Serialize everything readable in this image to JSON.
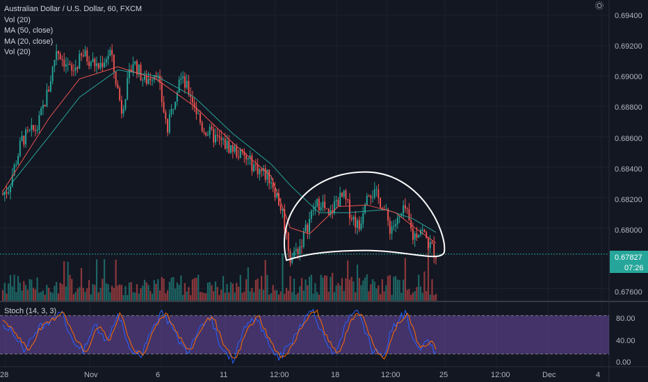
{
  "header": {
    "title": "Australian Dollar / U.S. Dollar, 60, FXCM",
    "indicators": [
      "Vol (20)",
      "MA (50, close)",
      "MA (20, close)",
      "Vol (20)"
    ]
  },
  "stoch": {
    "label": "Stoch (14, 3, 3)",
    "y_ticks": [
      "80.00",
      "40.00",
      "0.00"
    ],
    "band_upper": 80,
    "band_lower": 20
  },
  "price_axis": {
    "ticks": [
      "0.69400",
      "0.69200",
      "0.69000",
      "0.68800",
      "0.68600",
      "0.68400",
      "0.68200",
      "0.68000",
      "0.67600"
    ],
    "current_price": "0.67827",
    "countdown": "07:26"
  },
  "time_axis": {
    "ticks": [
      "28",
      "Nov",
      "6",
      "11",
      "12:00",
      "18",
      "12:00",
      "25",
      "12:00",
      "Dec",
      "4"
    ]
  },
  "colors": {
    "background": "#131722",
    "up": "#26a69a",
    "down": "#ef5350",
    "ma50": "#26a69a",
    "ma20": "#ef5350",
    "stoch_band": "#7e57c2",
    "stoch_k": "#2962ff",
    "stoch_d": "#ff6d00",
    "annotation": "#ffffff",
    "price_tag": "#26a69a"
  },
  "chart_data": [
    {
      "type": "candlestick",
      "title": "Australian Dollar / U.S. Dollar, 60, FXCM",
      "ylim": [
        0.6752,
        0.695
      ],
      "y_ticks": [
        0.694,
        0.692,
        0.69,
        0.688,
        0.686,
        0.684,
        0.682,
        0.68,
        0.676
      ],
      "last_price": 0.67827,
      "close_path": [
        [
          0,
          0.6822
        ],
        [
          3,
          0.6826
        ],
        [
          10,
          0.6858
        ],
        [
          18,
          0.6866
        ],
        [
          24,
          0.6892
        ],
        [
          28,
          0.6918
        ],
        [
          36,
          0.6902
        ],
        [
          42,
          0.6914
        ],
        [
          50,
          0.6906
        ],
        [
          56,
          0.6916
        ],
        [
          62,
          0.6878
        ],
        [
          68,
          0.691
        ],
        [
          74,
          0.6896
        ],
        [
          80,
          0.6904
        ],
        [
          86,
          0.6864
        ],
        [
          92,
          0.69
        ],
        [
          98,
          0.6888
        ],
        [
          104,
          0.6866
        ],
        [
          112,
          0.6858
        ],
        [
          120,
          0.6852
        ],
        [
          128,
          0.6844
        ],
        [
          134,
          0.6838
        ],
        [
          140,
          0.6832
        ],
        [
          146,
          0.681
        ],
        [
          150,
          0.678
        ],
        [
          155,
          0.6788
        ],
        [
          162,
          0.6812
        ],
        [
          166,
          0.6818
        ],
        [
          170,
          0.6806
        ],
        [
          174,
          0.6818
        ],
        [
          178,
          0.682
        ],
        [
          182,
          0.6808
        ],
        [
          186,
          0.68
        ],
        [
          190,
          0.6826
        ],
        [
          194,
          0.6822
        ],
        [
          198,
          0.6816
        ],
        [
          202,
          0.68
        ],
        [
          206,
          0.6804
        ],
        [
          210,
          0.6812
        ],
        [
          214,
          0.6794
        ],
        [
          218,
          0.68
        ],
        [
          222,
          0.679
        ],
        [
          226,
          0.6783
        ]
      ],
      "ma50_path": [
        [
          0,
          0.6822
        ],
        [
          24,
          0.686
        ],
        [
          40,
          0.6886
        ],
        [
          60,
          0.6904
        ],
        [
          80,
          0.69
        ],
        [
          100,
          0.6886
        ],
        [
          120,
          0.6862
        ],
        [
          140,
          0.6842
        ],
        [
          150,
          0.6828
        ],
        [
          165,
          0.681
        ],
        [
          180,
          0.681
        ],
        [
          200,
          0.6812
        ],
        [
          214,
          0.6806
        ],
        [
          226,
          0.6797
        ]
      ],
      "ma20_path": [
        [
          0,
          0.6824
        ],
        [
          24,
          0.6872
        ],
        [
          40,
          0.6898
        ],
        [
          60,
          0.6906
        ],
        [
          80,
          0.6898
        ],
        [
          100,
          0.688
        ],
        [
          120,
          0.6856
        ],
        [
          140,
          0.6834
        ],
        [
          150,
          0.68
        ],
        [
          160,
          0.6796
        ],
        [
          175,
          0.6814
        ],
        [
          190,
          0.6815
        ],
        [
          205,
          0.681
        ],
        [
          215,
          0.68
        ],
        [
          226,
          0.679
        ]
      ],
      "volume_scale_max": 100
    },
    {
      "type": "line",
      "title": "Stoch (14, 3, 3)",
      "ylim": [
        0,
        100
      ],
      "y_ticks": [
        0,
        40,
        80
      ],
      "series": [
        {
          "values_path": [
            [
              0,
              70
            ],
            [
              6,
              50
            ],
            [
              12,
              25
            ],
            [
              18,
              60
            ],
            [
              24,
              72
            ],
            [
              30,
              88
            ],
            [
              36,
              45
            ],
            [
              42,
              22
            ],
            [
              48,
              66
            ],
            [
              54,
              40
            ],
            [
              60,
              84
            ],
            [
              66,
              30
            ],
            [
              72,
              15
            ],
            [
              78,
              65
            ],
            [
              84,
              85
            ],
            [
              90,
              50
            ],
            [
              96,
              22
            ],
            [
              102,
              60
            ],
            [
              108,
              82
            ],
            [
              114,
              30
            ],
            [
              120,
              10
            ],
            [
              126,
              58
            ],
            [
              132,
              80
            ],
            [
              138,
              40
            ],
            [
              144,
              12
            ],
            [
              150,
              36
            ],
            [
              156,
              70
            ],
            [
              162,
              90
            ],
            [
              168,
              42
            ],
            [
              174,
              18
            ],
            [
              180,
              74
            ],
            [
              186,
              86
            ],
            [
              192,
              30
            ],
            [
              198,
              12
            ],
            [
              204,
              66
            ],
            [
              210,
              84
            ],
            [
              216,
              28
            ],
            [
              222,
              40
            ],
            [
              226,
              18
            ]
          ]
        }
      ]
    }
  ]
}
